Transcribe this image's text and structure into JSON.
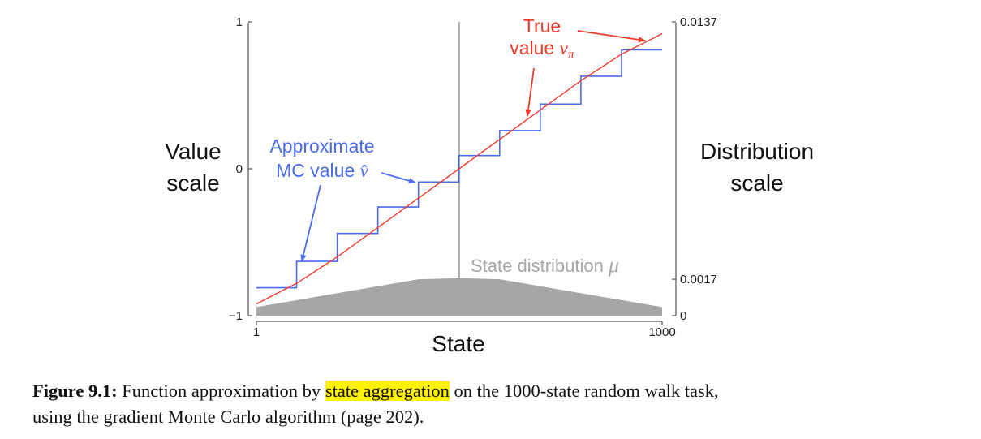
{
  "chart_data": {
    "type": "line",
    "xlabel": "State",
    "ylabel_left": [
      "Value",
      "scale"
    ],
    "ylabel_right": [
      "Distribution",
      "scale"
    ],
    "xlim": [
      1,
      1000
    ],
    "ylim_left": [
      -1,
      1
    ],
    "ylim_right": [
      0,
      0.0137
    ],
    "xticks": [
      "1",
      "1000"
    ],
    "yticks_left": [
      {
        "value": 1,
        "label": "1"
      },
      {
        "value": 0,
        "label": "0"
      },
      {
        "value": -1,
        "label": "−1"
      }
    ],
    "yticks_right": [
      {
        "value": 0.0137,
        "label": "0.0137"
      },
      {
        "value": 0.0017,
        "label": "0.0017"
      },
      {
        "value": 0,
        "label": "0"
      }
    ],
    "true_value": {
      "name": "True value vπ",
      "color": "#ee3b2c",
      "x": [
        1,
        100,
        200,
        300,
        400,
        500,
        600,
        700,
        800,
        900,
        1000
      ],
      "y": [
        -0.92,
        -0.78,
        -0.6,
        -0.4,
        -0.2,
        0.0,
        0.2,
        0.4,
        0.6,
        0.78,
        0.92
      ]
    },
    "approx_value": {
      "name": "Approximate MC value v̂",
      "color": "#4a6cf0",
      "group_edges": [
        1,
        100,
        200,
        300,
        400,
        500,
        600,
        700,
        800,
        900,
        1000
      ],
      "values": [
        -0.81,
        -0.63,
        -0.44,
        -0.26,
        -0.09,
        0.09,
        0.26,
        0.44,
        0.63,
        0.81
      ]
    },
    "state_distribution": {
      "name": "State distribution μ",
      "color": "#a6a6a6",
      "x": [
        1,
        400,
        500,
        600,
        1000
      ],
      "y": [
        0.0004,
        0.0017,
        0.00175,
        0.0017,
        0.0004
      ],
      "start_state": 500
    },
    "annotations": {
      "true_label_line1": "True",
      "true_label_line2": "value ",
      "true_label_symbol": "v",
      "true_label_sub": "π",
      "approx_label_line1": "Approximate",
      "approx_label_line2": "MC value ",
      "approx_label_symbol": "v̂",
      "dist_label": "State distribution ",
      "dist_label_symbol": "μ"
    }
  },
  "caption": {
    "label": "Figure 9.1:",
    "text_before": " Function approximation by ",
    "highlight": "state aggregation",
    "text_after_line1": " on the 1000-state random walk task,",
    "text_line2": "using the gradient Monte Carlo algorithm (page 202)."
  }
}
